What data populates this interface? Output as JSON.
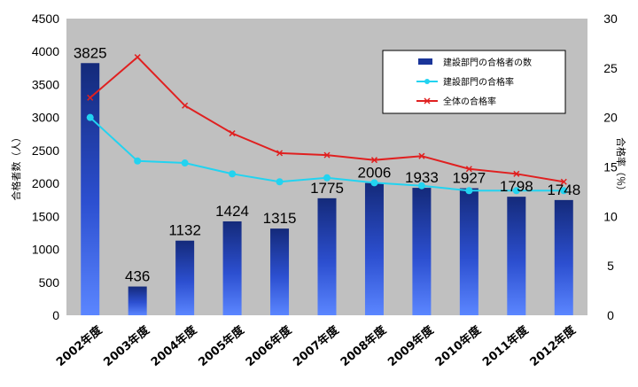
{
  "chart_data": {
    "type": "bar",
    "categories": [
      "2002年度",
      "2003年度",
      "2004年度",
      "2005年度",
      "2006年度",
      "2007年度",
      "2008年度",
      "2009年度",
      "2010年度",
      "2011年度",
      "2012年度"
    ],
    "series": [
      {
        "name": "建設部門の合格者の数",
        "type": "bar",
        "axis": "left",
        "values": [
          3825,
          436,
          1132,
          1424,
          1315,
          1775,
          2006,
          1933,
          1927,
          1798,
          1748
        ],
        "color": "#2c4fd0"
      },
      {
        "name": "建設部門の合格率",
        "type": "line",
        "axis": "right",
        "values": [
          20.0,
          15.6,
          15.4,
          14.3,
          13.5,
          13.9,
          13.4,
          13.1,
          12.6,
          12.6,
          12.6
        ],
        "color": "#22d3f0"
      },
      {
        "name": "全体の合格率",
        "type": "line",
        "axis": "right",
        "values": [
          22.0,
          26.1,
          21.2,
          18.4,
          16.4,
          16.2,
          15.7,
          16.1,
          14.8,
          14.3,
          13.5
        ],
        "color": "#e02020"
      }
    ],
    "ylabel": "合格者数（人）",
    "y2label": "合格率（％）",
    "ylim": [
      0,
      4500
    ],
    "y2lim": [
      0,
      30
    ],
    "yticks": [
      "0",
      "500",
      "1000",
      "1500",
      "2000",
      "2500",
      "3000",
      "3500",
      "4000",
      "4500"
    ],
    "y2ticks": [
      "0",
      "5",
      "10",
      "15",
      "20",
      "25",
      "30"
    ],
    "data_labels": [
      "3825",
      "436",
      "1132",
      "1424",
      "1315",
      "1775",
      "2006",
      "1933",
      "1927",
      "1798",
      "1748"
    ],
    "legend_position": "top-right",
    "grid": false,
    "plot_background": "#c0c0c0"
  }
}
